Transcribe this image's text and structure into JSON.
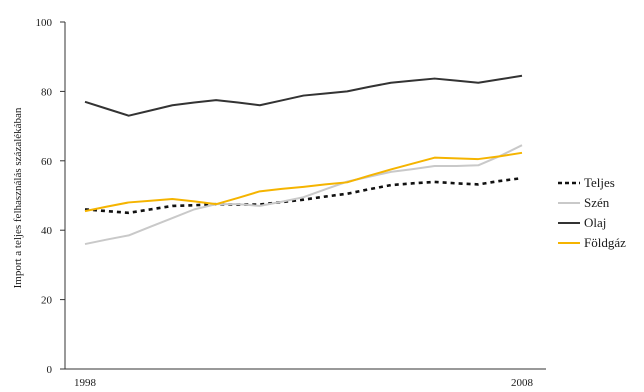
{
  "chart_data": {
    "type": "line",
    "ylabel": "Import a teljes felhasználás százalékában",
    "xlabel": "",
    "ylim": [
      0,
      100
    ],
    "yticks": [
      0,
      20,
      40,
      60,
      80,
      100
    ],
    "x": [
      1998,
      1998.5,
      1999,
      1999.5,
      2000,
      2000.5,
      2001,
      2001.5,
      2002,
      2002.5,
      2003,
      2003.5,
      2004,
      2004.5,
      2005,
      2005.5,
      2006,
      2006.5,
      2007,
      2007.5,
      2008
    ],
    "x_tick_labels": [
      "1998",
      "2008"
    ],
    "legend_position": "right",
    "grid": false,
    "series": [
      {
        "name": "Teljes",
        "color": "#111111",
        "style": "dotted",
        "values": [
          46.0,
          45.5,
          45.0,
          46.0,
          47.0,
          47.2,
          47.5,
          47.4,
          47.4,
          48.1,
          48.8,
          49.7,
          50.5,
          51.8,
          53.0,
          53.5,
          53.9,
          53.5,
          53.2,
          54.2,
          55.0
        ]
      },
      {
        "name": "Szén",
        "color": "#c9c9c9",
        "style": "solid",
        "values": [
          36.0,
          37.3,
          38.5,
          41.0,
          43.5,
          46.0,
          47.5,
          47.5,
          47.0,
          48.2,
          49.5,
          51.8,
          54.0,
          55.4,
          56.8,
          57.6,
          58.5,
          58.5,
          58.7,
          61.4,
          64.5
        ]
      },
      {
        "name": "Olaj",
        "color": "#333333",
        "style": "solid",
        "values": [
          77.0,
          75.0,
          73.0,
          74.5,
          76.0,
          76.8,
          77.5,
          76.8,
          76.0,
          77.4,
          78.8,
          79.4,
          80.0,
          81.3,
          82.5,
          83.1,
          83.7,
          83.1,
          82.5,
          83.5,
          84.5
        ]
      },
      {
        "name": "Földgáz",
        "color": "#f5b400",
        "style": "solid",
        "values": [
          45.5,
          46.8,
          48.0,
          48.5,
          49.0,
          48.3,
          47.5,
          49.3,
          51.2,
          51.9,
          52.5,
          53.2,
          53.8,
          55.7,
          57.5,
          59.2,
          60.9,
          60.7,
          60.5,
          61.3,
          62.3
        ]
      }
    ]
  }
}
